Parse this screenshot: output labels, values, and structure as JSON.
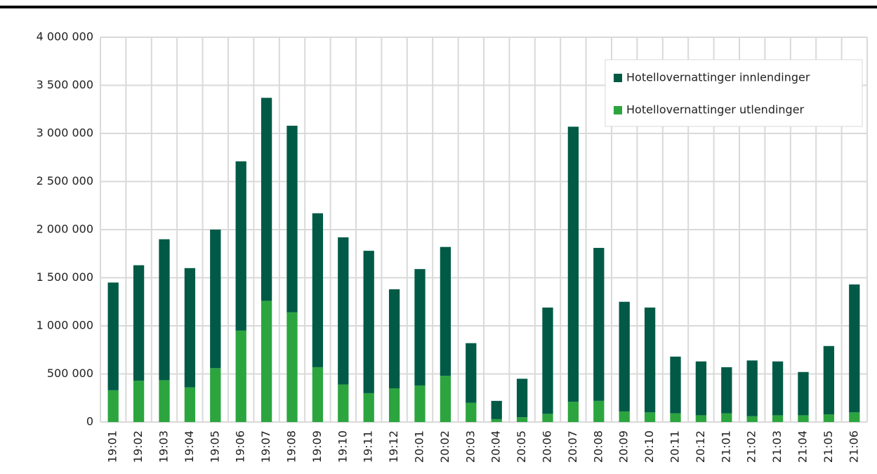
{
  "chart_data": {
    "type": "stacked-bar",
    "categories": [
      "19:01",
      "19:02",
      "19:03",
      "19:04",
      "19:05",
      "19:06",
      "19:07",
      "19:08",
      "19:09",
      "19:10",
      "19:11",
      "19:12",
      "20:01",
      "20:02",
      "20:03",
      "20:04",
      "20:05",
      "20:06",
      "20:07",
      "20:08",
      "20:09",
      "20:10",
      "20:11",
      "20:12",
      "21:01",
      "21:02",
      "21:03",
      "21:04",
      "21:05",
      "21:06"
    ],
    "series": [
      {
        "name": "Hotellovernattinger innlendinger",
        "color": "#005a46",
        "values": [
          1120000,
          1200000,
          1465000,
          1240000,
          1440000,
          1760000,
          2110000,
          1940000,
          1600000,
          1530000,
          1480000,
          1030000,
          1210000,
          1340000,
          620000,
          190000,
          400000,
          1105000,
          2860000,
          1590000,
          1140000,
          1090000,
          590000,
          560000,
          480000,
          580000,
          560000,
          450000,
          710000,
          1330000
        ]
      },
      {
        "name": "Hotellovernattinger utlendinger",
        "color": "#2ca53f",
        "values": [
          330000,
          430000,
          435000,
          360000,
          560000,
          950000,
          1260000,
          1140000,
          570000,
          390000,
          300000,
          350000,
          380000,
          480000,
          200000,
          30000,
          50000,
          85000,
          210000,
          220000,
          110000,
          100000,
          90000,
          70000,
          90000,
          60000,
          70000,
          70000,
          80000,
          100000
        ]
      }
    ],
    "ylim": [
      0,
      4000000
    ],
    "yticks": [
      {
        "value": 0,
        "label": "0"
      },
      {
        "value": 500000,
        "label": "500 000"
      },
      {
        "value": 1000000,
        "label": "1 000 000"
      },
      {
        "value": 1500000,
        "label": "1 500 000"
      },
      {
        "value": 2000000,
        "label": "2 000 000"
      },
      {
        "value": 2500000,
        "label": "2 500 000"
      },
      {
        "value": 3000000,
        "label": "3 000 000"
      },
      {
        "value": 3500000,
        "label": "3 500 000"
      },
      {
        "value": 4000000,
        "label": "4 000 000"
      }
    ],
    "grid": true,
    "legend": "upper-right"
  }
}
